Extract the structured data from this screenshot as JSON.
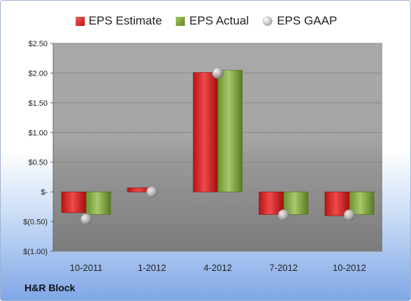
{
  "legend": [
    {
      "label": "EPS Estimate",
      "color": "#d42424",
      "icon": "red-square-icon"
    },
    {
      "label": "EPS Actual",
      "color": "#7aa33a",
      "icon": "green-square-icon"
    },
    {
      "label": "EPS GAAP",
      "color": "#aaaaaa",
      "icon": "grey-sphere-icon"
    }
  ],
  "company": "H&R Block",
  "chart_data": {
    "type": "bar",
    "categories": [
      "10-2011",
      "1-2012",
      "4-2012",
      "7-2012",
      "10-2012"
    ],
    "series": [
      {
        "name": "EPS Estimate",
        "values": [
          -0.35,
          0.07,
          2.01,
          -0.38,
          -0.4
        ],
        "color": "#d42424"
      },
      {
        "name": "EPS Actual",
        "values": [
          -0.38,
          null,
          2.05,
          -0.38,
          -0.38
        ],
        "color": "#7aa33a"
      },
      {
        "name": "EPS GAAP",
        "values": [
          -0.46,
          0.0,
          2.0,
          -0.39,
          -0.39
        ],
        "color": "#aaaaaa",
        "marker": "sphere"
      }
    ],
    "ylim": [
      -1.0,
      2.5
    ],
    "yticks": [
      2.5,
      2.0,
      1.5,
      1.0,
      0.5,
      0,
      -0.5,
      -1.0
    ],
    "ytick_labels": [
      "$2.50",
      "$2.00",
      "$1.50",
      "$1.00",
      "$0.50",
      "$-",
      "$(0.50)",
      "$(1.00)"
    ],
    "grid": true,
    "legend_position": "top"
  }
}
